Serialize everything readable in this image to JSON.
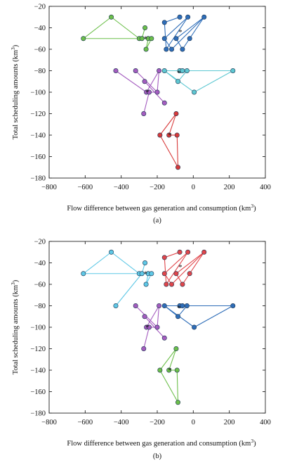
{
  "chart_data": [
    {
      "type": "scatter",
      "panel": "(a)",
      "xlabel": "Flow difference between gas generation and consumption (km",
      "xlabel_sup": "3",
      "xlabel_end": ")",
      "ylabel": "Total scheduling amounts (km",
      "ylabel_sup": "3",
      "ylabel_end": ")",
      "xlim": [
        -800,
        400
      ],
      "ylim": [
        -180,
        -20
      ],
      "xticks": [
        "−800",
        "−600",
        "−400",
        "−200",
        "0",
        "200",
        "400"
      ],
      "xtick_values": [
        -800,
        -600,
        -400,
        -200,
        0,
        200,
        400
      ],
      "yticks": [
        "−20",
        "−40",
        "−60",
        "−80",
        "−100",
        "−120",
        "−140",
        "−160",
        "−180"
      ],
      "ytick_values": [
        -20,
        -40,
        -60,
        -80,
        -100,
        -120,
        -140,
        -160,
        -180
      ],
      "grid": false,
      "clusters": [
        {
          "color": "#6cbf4a",
          "centroid": [
            -265,
            -50
          ],
          "points": [
            [
              -610,
              -50
            ],
            [
              -455,
              -30
            ],
            [
              -268,
              -40
            ],
            [
              -300,
              -50
            ],
            [
              -285,
              -50
            ],
            [
              -250,
              -50
            ],
            [
              -232,
              -50
            ],
            [
              -262,
              -60
            ]
          ],
          "edges": [
            [
              0,
              1
            ],
            [
              1,
              3
            ],
            [
              0,
              3
            ],
            [
              2,
              4
            ],
            [
              4,
              5
            ],
            [
              5,
              7
            ],
            [
              3,
              6
            ],
            [
              6,
              7
            ]
          ]
        },
        {
          "color": "#2e6db8",
          "centroid": [
            -72,
            -44
          ],
          "points": [
            [
              -75,
              -30
            ],
            [
              -30,
              -30
            ],
            [
              60,
              -30
            ],
            [
              -160,
              -35
            ],
            [
              -160,
              -50
            ],
            [
              -95,
              -50
            ],
            [
              -20,
              -50
            ],
            [
              -150,
              -60
            ],
            [
              -120,
              -60
            ],
            [
              -60,
              -60
            ]
          ],
          "edges": [
            [
              0,
              3
            ],
            [
              3,
              7
            ],
            [
              7,
              1
            ],
            [
              1,
              4
            ],
            [
              4,
              8
            ],
            [
              8,
              2
            ],
            [
              2,
              5
            ],
            [
              5,
              9
            ],
            [
              9,
              6
            ],
            [
              6,
              2
            ]
          ]
        },
        {
          "color": "#5ec8d2",
          "centroid": [
            -80,
            -82
          ],
          "points": [
            [
              -160,
              -80
            ],
            [
              -75,
              -80
            ],
            [
              -60,
              -80
            ],
            [
              -35,
              -80
            ],
            [
              220,
              -80
            ],
            [
              -85,
              -90
            ],
            [
              5,
              -100
            ]
          ],
          "edges": [
            [
              0,
              1
            ],
            [
              1,
              2
            ],
            [
              2,
              3
            ],
            [
              3,
              4
            ],
            [
              4,
              6
            ],
            [
              6,
              0
            ],
            [
              0,
              5
            ],
            [
              5,
              3
            ]
          ]
        },
        {
          "color": "#a45cbf",
          "centroid": [
            -255,
            -100
          ],
          "points": [
            [
              -430,
              -80
            ],
            [
              -320,
              -80
            ],
            [
              -190,
              -80
            ],
            [
              -270,
              -90
            ],
            [
              -260,
              -100
            ],
            [
              -245,
              -100
            ],
            [
              -200,
              -100
            ],
            [
              -160,
              -110
            ],
            [
              -275,
              -120
            ]
          ],
          "edges": [
            [
              0,
              4
            ],
            [
              1,
              6
            ],
            [
              2,
              4
            ],
            [
              3,
              7
            ],
            [
              4,
              5
            ],
            [
              5,
              8
            ],
            [
              6,
              5
            ],
            [
              2,
              6
            ]
          ]
        },
        {
          "color": "#d83a3a",
          "centroid": [
            -130,
            -140
          ],
          "points": [
            [
              -95,
              -120
            ],
            [
              -185,
              -140
            ],
            [
              -135,
              -140
            ],
            [
              -90,
              -140
            ],
            [
              -85,
              -170
            ]
          ],
          "edges": [
            [
              0,
              1
            ],
            [
              1,
              4
            ],
            [
              4,
              3
            ],
            [
              3,
              2
            ],
            [
              2,
              0
            ]
          ]
        }
      ],
      "caption": "(a)"
    },
    {
      "type": "scatter",
      "panel": "(b)",
      "xlabel": "Flow difference between gas generation and consumption (km",
      "xlabel_sup": "3",
      "xlabel_end": ")",
      "ylabel": "Total scheduling amounts (km",
      "ylabel_sup": "3",
      "ylabel_end": ")",
      "xlim": [
        -800,
        400
      ],
      "ylim": [
        -180,
        -20
      ],
      "xticks": [
        "−800",
        "−600",
        "−400",
        "−200",
        "0",
        "200",
        "400"
      ],
      "xtick_values": [
        -800,
        -600,
        -400,
        -200,
        0,
        200,
        400
      ],
      "yticks": [
        "−20",
        "−40",
        "−60",
        "−80",
        "−100",
        "−120",
        "−140",
        "−160",
        "−180"
      ],
      "ytick_values": [
        -20,
        -40,
        -60,
        -80,
        -100,
        -120,
        -140,
        -160,
        -180
      ],
      "grid": false,
      "clusters": [
        {
          "color": "#5ec8e6",
          "centroid": [
            -265,
            -50
          ],
          "points": [
            [
              -610,
              -50
            ],
            [
              -455,
              -30
            ],
            [
              -268,
              -40
            ],
            [
              -300,
              -50
            ],
            [
              -285,
              -50
            ],
            [
              -250,
              -50
            ],
            [
              -232,
              -50
            ],
            [
              -262,
              -60
            ],
            [
              -430,
              -80
            ]
          ],
          "edges": [
            [
              0,
              1
            ],
            [
              1,
              3
            ],
            [
              0,
              3
            ],
            [
              2,
              4
            ],
            [
              4,
              5
            ],
            [
              5,
              7
            ],
            [
              3,
              6
            ],
            [
              6,
              7
            ],
            [
              8,
              4
            ]
          ]
        },
        {
          "color": "#e0454a",
          "centroid": [
            -72,
            -44
          ],
          "points": [
            [
              -75,
              -30
            ],
            [
              -30,
              -30
            ],
            [
              60,
              -30
            ],
            [
              -160,
              -35
            ],
            [
              -160,
              -50
            ],
            [
              -95,
              -50
            ],
            [
              -20,
              -50
            ],
            [
              -150,
              -60
            ],
            [
              -120,
              -60
            ],
            [
              -60,
              -60
            ]
          ],
          "edges": [
            [
              0,
              3
            ],
            [
              3,
              7
            ],
            [
              7,
              1
            ],
            [
              1,
              4
            ],
            [
              4,
              8
            ],
            [
              8,
              2
            ],
            [
              2,
              5
            ],
            [
              5,
              9
            ],
            [
              9,
              6
            ],
            [
              6,
              2
            ]
          ]
        },
        {
          "color": "#2e6db8",
          "centroid": [
            -80,
            -82
          ],
          "points": [
            [
              -160,
              -80
            ],
            [
              -75,
              -80
            ],
            [
              -60,
              -80
            ],
            [
              -35,
              -80
            ],
            [
              220,
              -80
            ],
            [
              -85,
              -90
            ],
            [
              5,
              -100
            ]
          ],
          "edges": [
            [
              0,
              1
            ],
            [
              1,
              2
            ],
            [
              2,
              3
            ],
            [
              3,
              4
            ],
            [
              4,
              6
            ],
            [
              6,
              0
            ],
            [
              0,
              5
            ],
            [
              5,
              3
            ]
          ]
        },
        {
          "color": "#a45cbf",
          "centroid": [
            -255,
            -100
          ],
          "points": [
            [
              -320,
              -80
            ],
            [
              -190,
              -80
            ],
            [
              -270,
              -90
            ],
            [
              -260,
              -100
            ],
            [
              -245,
              -100
            ],
            [
              -200,
              -100
            ],
            [
              -160,
              -110
            ],
            [
              -275,
              -120
            ]
          ],
          "edges": [
            [
              0,
              5
            ],
            [
              1,
              3
            ],
            [
              2,
              6
            ],
            [
              3,
              4
            ],
            [
              4,
              7
            ],
            [
              5,
              4
            ],
            [
              1,
              5
            ]
          ]
        },
        {
          "color": "#6cbf4a",
          "centroid": [
            -130,
            -140
          ],
          "points": [
            [
              -95,
              -120
            ],
            [
              -185,
              -140
            ],
            [
              -135,
              -140
            ],
            [
              -90,
              -140
            ],
            [
              -85,
              -170
            ]
          ],
          "edges": [
            [
              0,
              1
            ],
            [
              1,
              4
            ],
            [
              4,
              3
            ],
            [
              3,
              2
            ],
            [
              2,
              0
            ]
          ]
        }
      ],
      "caption": "(b)"
    }
  ]
}
